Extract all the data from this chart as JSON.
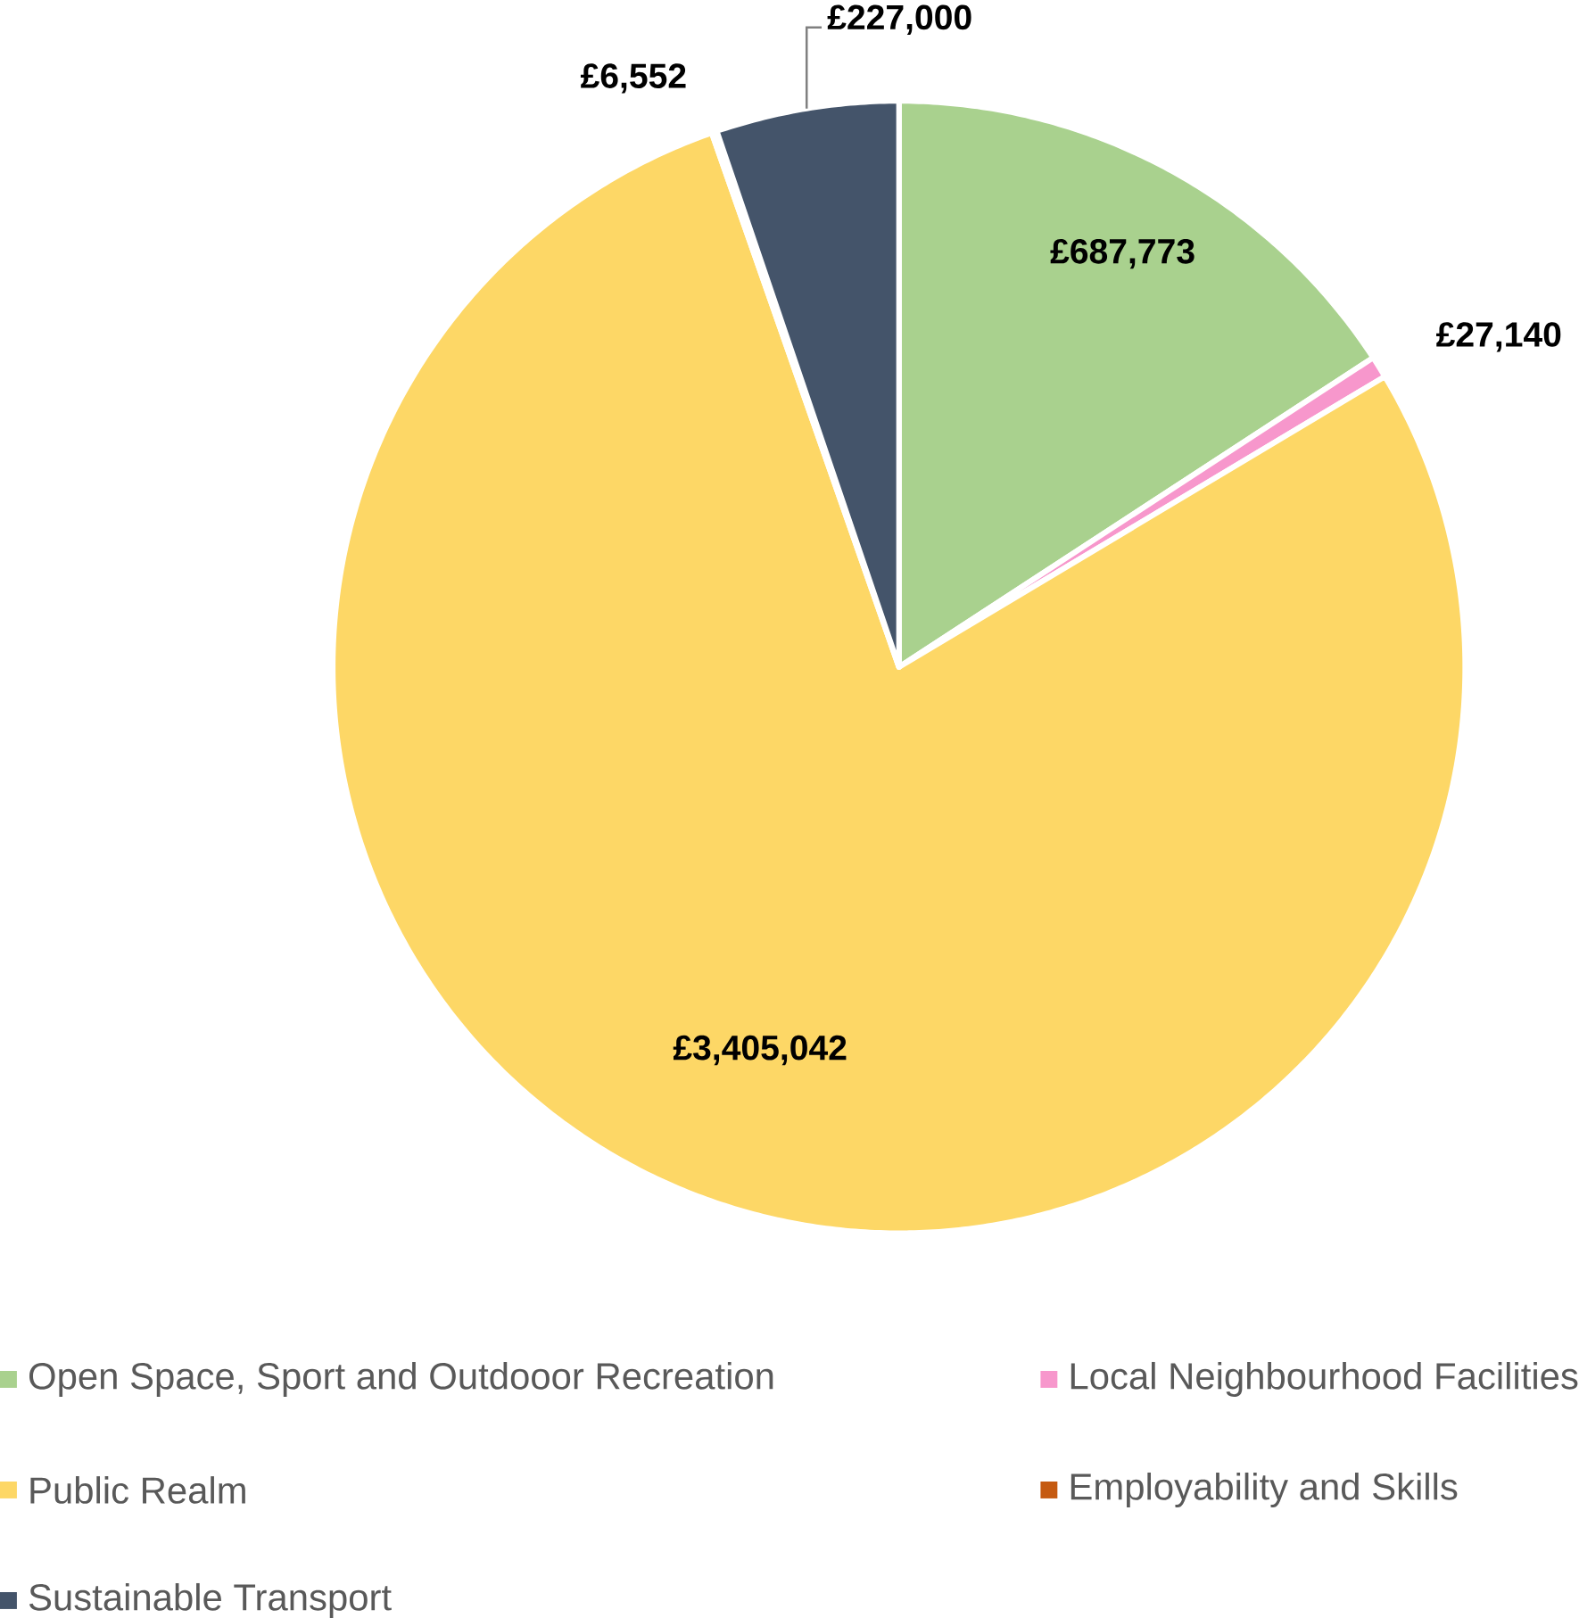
{
  "chart_data": {
    "type": "pie",
    "categories": [
      "Open Space, Sport and Outdooor Recreation",
      "Local Neighbourhood Facilities",
      "Public Realm",
      "Employability and Skills",
      "Sustainable Transport"
    ],
    "values": [
      687773,
      27140,
      3405042,
      6552,
      227000
    ],
    "value_labels": [
      "£687,773",
      "£27,140",
      "£3,405,042",
      "£6,552",
      "£227,000"
    ],
    "colors": [
      "#a9d18e",
      "#f797cc",
      "#fdd766",
      "#c55a11",
      "#44546a"
    ],
    "legend": "bottom"
  }
}
